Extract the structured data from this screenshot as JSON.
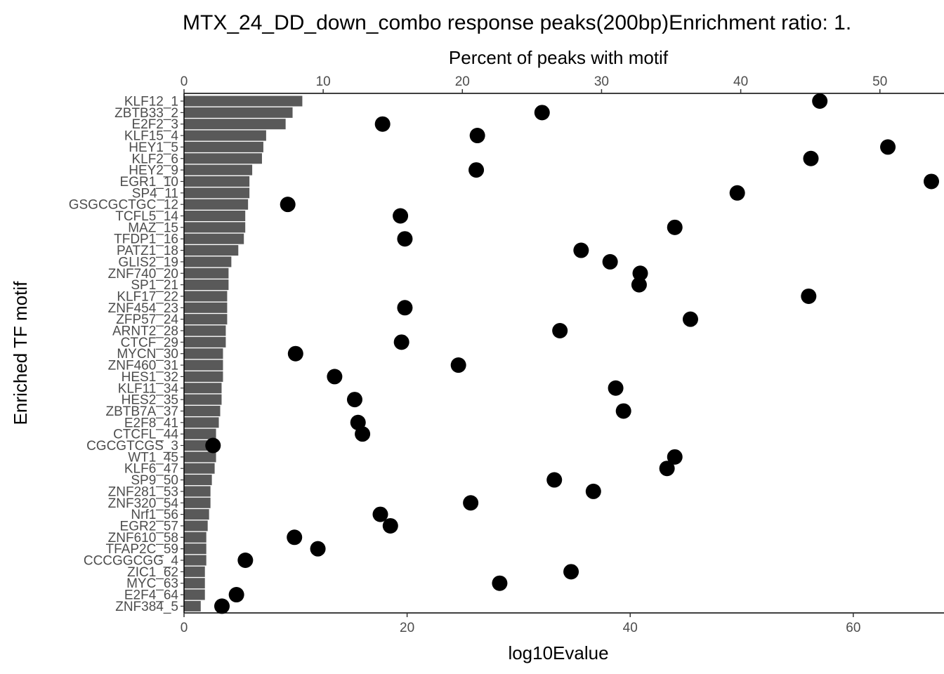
{
  "chart_data": {
    "type": "bar",
    "title": "MTX_24_DD_down_combo response peaks(200bp)Enrichment ratio: 1.",
    "xlabel_top": "Percent of peaks with motif",
    "xlabel_bottom": "log10Evalue",
    "ylabel": "Enriched TF motif",
    "top_axis": {
      "range": [
        0,
        54
      ],
      "ticks": [
        0,
        10,
        20,
        30,
        40,
        50
      ]
    },
    "bottom_axis": {
      "range": [
        0,
        67
      ],
      "ticks": [
        0,
        20,
        40,
        60
      ]
    },
    "grid": false,
    "colors": {
      "bar": "#595959",
      "point": "#000000",
      "axis": "#000000"
    },
    "categories": [
      "KLF12_1",
      "ZBTB33_2",
      "E2F2_3",
      "KLF15_4",
      "HEY1_5",
      "KLF2_6",
      "HEY2_9",
      "EGR1_10",
      "SP4_11",
      "GSGCGCTGC_12",
      "TCFL5_14",
      "MAZ_15",
      "TFDP1_16",
      "PATZ1_18",
      "GLIS2_19",
      "ZNF740_20",
      "SP1_21",
      "KLF17_22",
      "ZNF454_23",
      "ZFP57_24",
      "ARNT2_28",
      "CTCF_29",
      "MYCN_30",
      "ZNF460_31",
      "HES1_32",
      "KLF11_34",
      "HES2_35",
      "ZBTB7A_37",
      "E2F8_41",
      "CTCFL_44",
      "CGCGTCGS_3",
      "WT1_45",
      "KLF6_47",
      "SP9_50",
      "ZNF281_53",
      "ZNF320_54",
      "Nrf1_56",
      "EGR2_57",
      "ZNF610_58",
      "TFAP2C_59",
      "CCCGGCGG_4",
      "ZIC1_62",
      "MYC_63",
      "E2F4_64",
      "ZNF384_5"
    ],
    "series": [
      {
        "name": "Percent of peaks with motif",
        "type": "bar",
        "axis": "top",
        "values": [
          8.5,
          7.8,
          7.3,
          5.9,
          5.7,
          5.6,
          4.9,
          4.7,
          4.7,
          4.6,
          4.4,
          4.4,
          4.3,
          3.9,
          3.4,
          3.2,
          3.2,
          3.1,
          3.1,
          3.1,
          3.0,
          3.0,
          2.8,
          2.8,
          2.8,
          2.7,
          2.7,
          2.6,
          2.5,
          2.3,
          2.3,
          2.3,
          2.2,
          2.0,
          1.9,
          1.9,
          1.8,
          1.7,
          1.6,
          1.6,
          1.6,
          1.5,
          1.5,
          1.5,
          1.2
        ]
      },
      {
        "name": "log10Evalue",
        "type": "scatter",
        "axis": "bottom",
        "values": [
          57.0,
          32.1,
          17.8,
          26.3,
          63.1,
          56.2,
          26.2,
          67.0,
          49.6,
          9.3,
          19.4,
          44.0,
          19.8,
          35.6,
          38.2,
          40.9,
          40.8,
          56.0,
          19.8,
          45.4,
          33.7,
          19.5,
          10.0,
          24.6,
          13.5,
          38.7,
          15.3,
          39.4,
          15.6,
          16.0,
          2.6,
          44.0,
          43.3,
          33.2,
          36.7,
          25.7,
          17.6,
          18.5,
          9.9,
          12.0,
          5.5,
          34.7,
          28.3,
          4.7,
          3.4
        ]
      }
    ]
  }
}
